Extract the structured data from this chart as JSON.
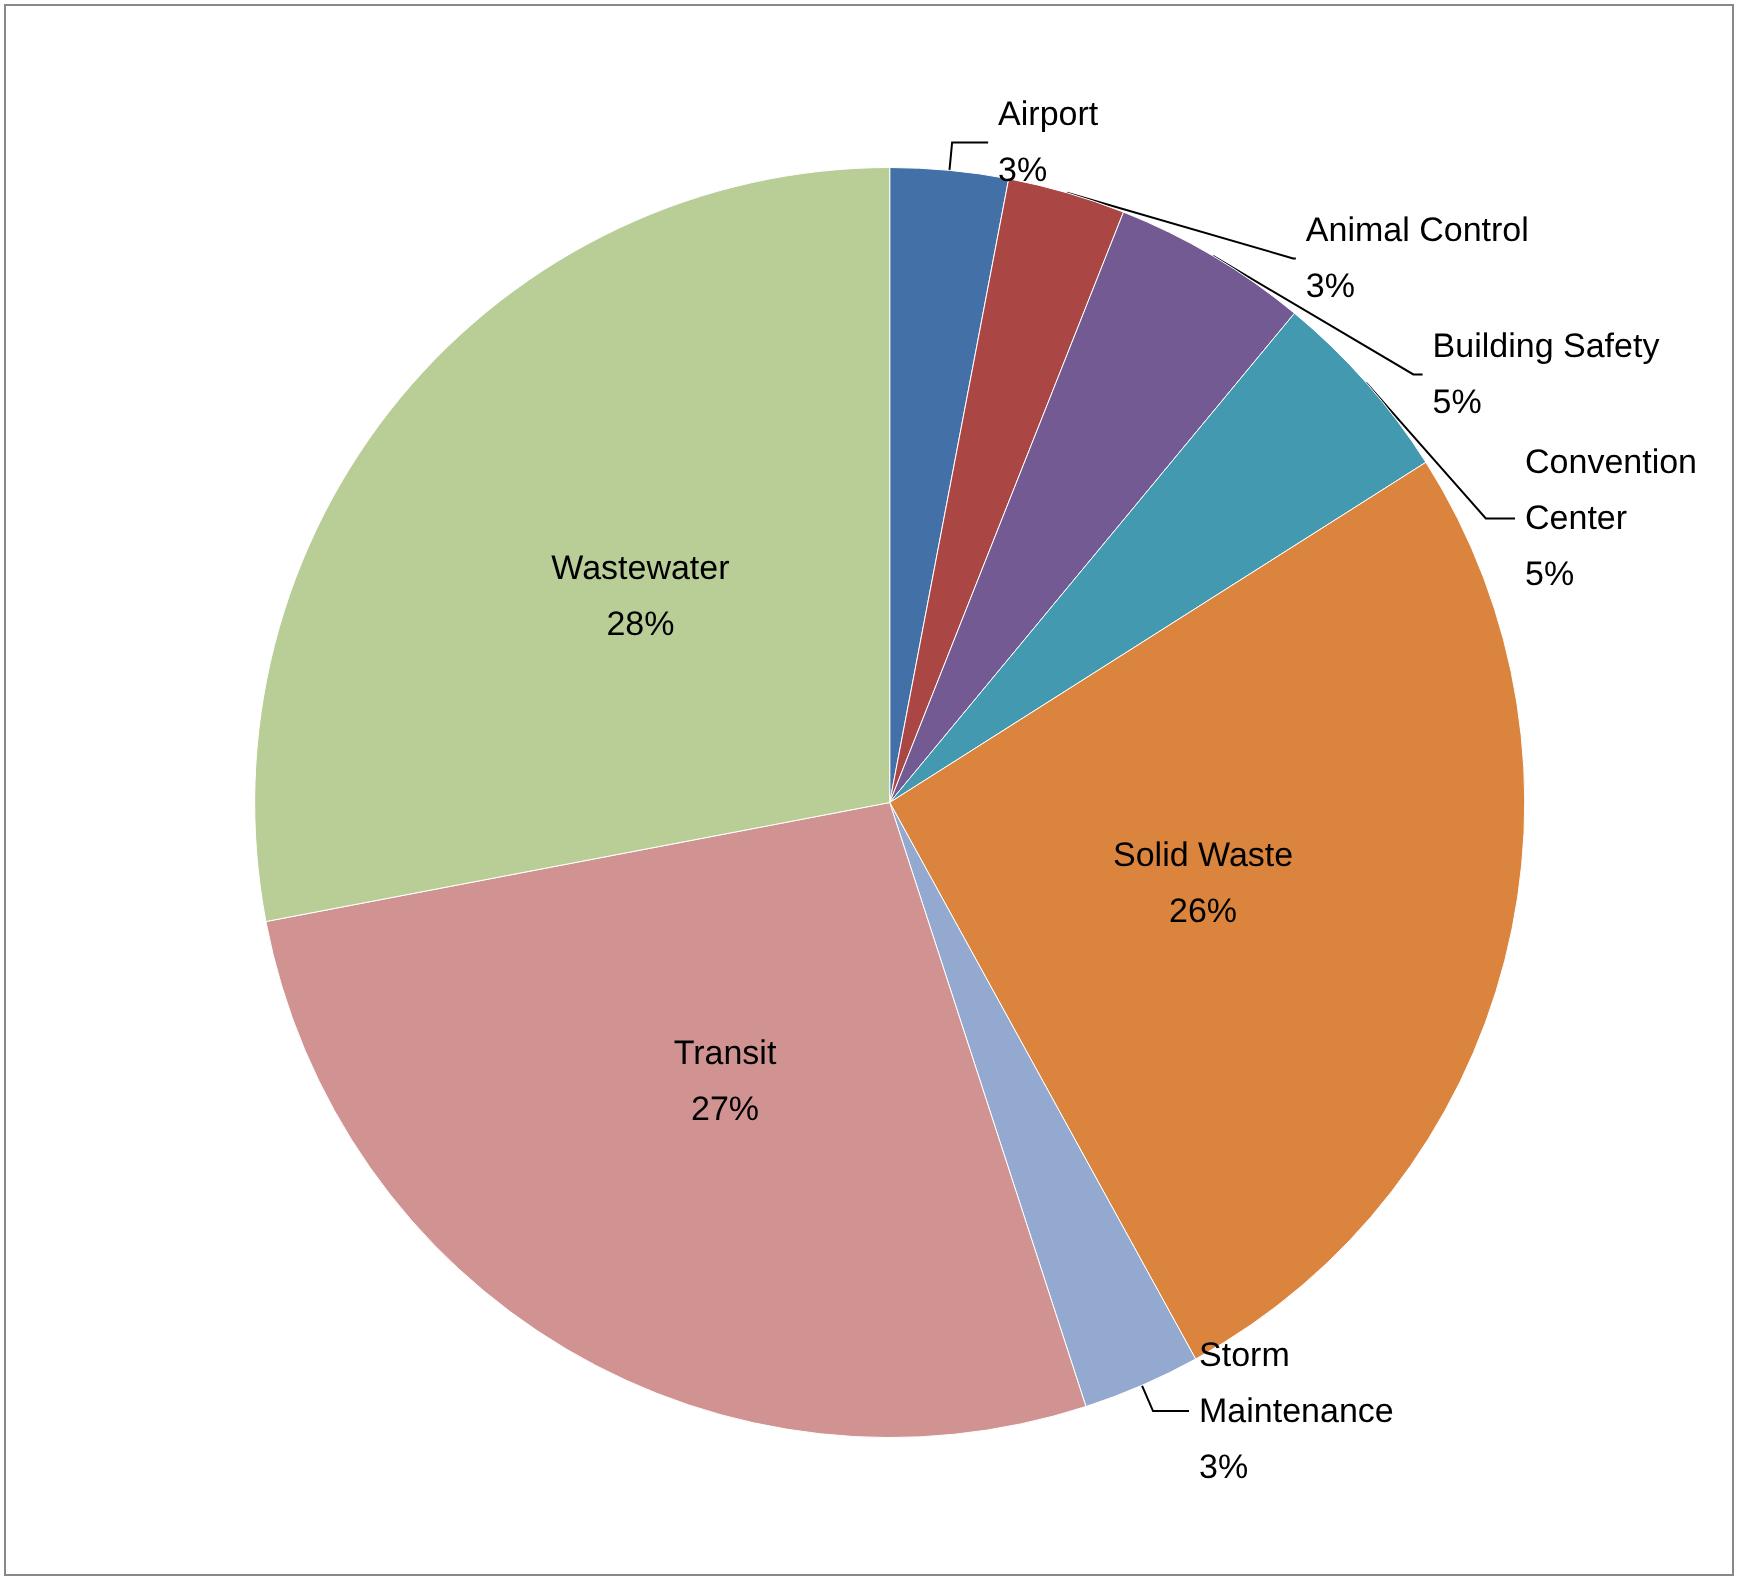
{
  "chart_data": {
    "type": "pie",
    "categories": [
      "Airport",
      "Animal Control",
      "Building Safety",
      "Convention Center",
      "Solid Waste",
      "Storm Maintenance",
      "Transit",
      "Wastewater"
    ],
    "values": [
      3,
      3,
      5,
      5,
      26,
      3,
      27,
      28
    ],
    "value_labels": [
      "3%",
      "3%",
      "5%",
      "5%",
      "26%",
      "3%",
      "27%",
      "28%"
    ],
    "colors": [
      "#4470a8",
      "#aa4644",
      "#735a92",
      "#4299b0",
      "#db843d",
      "#93a9cf",
      "#d19392",
      "#b9cd96"
    ],
    "legend": false
  }
}
